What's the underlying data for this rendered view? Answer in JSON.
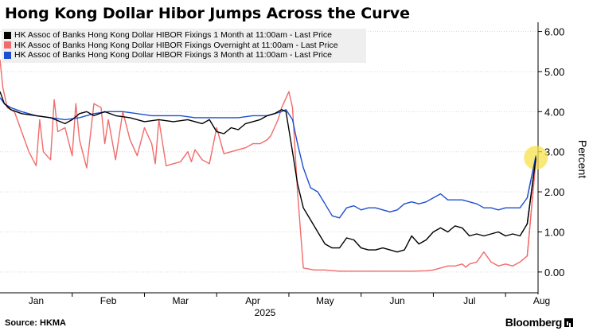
{
  "title": "Hong Kong Dollar Hibor Jumps Across the Curve",
  "source": "Source: HKMA",
  "brand": "Bloomberg",
  "colors": {
    "one_month": "#000000",
    "overnight": "#f26b6b",
    "three_month": "#1f4fd1",
    "highlight": "#f7e24a",
    "grid": "#d9d9d9",
    "legend_bg": "#efefef"
  },
  "chart_data": {
    "type": "line",
    "title": "Hong Kong Dollar Hibor Jumps Across the Curve",
    "xlabel": "2025",
    "ylabel": "Percent",
    "y_axis_side": "right",
    "ylim": [
      -0.4,
      6.15
    ],
    "yticks": [
      0.0,
      1.0,
      2.0,
      3.0,
      4.0,
      5.0,
      6.0
    ],
    "ytick_labels": [
      "0.00",
      "1.00",
      "2.00",
      "3.00",
      "4.00",
      "5.00",
      "6.00"
    ],
    "xlim": [
      0,
      7.45
    ],
    "xticks": [
      0.5,
      1.5,
      2.5,
      3.5,
      4.5,
      5.5,
      6.5,
      7.5
    ],
    "xtick_labels": [
      "Jan",
      "Feb",
      "Mar",
      "Apr",
      "May",
      "Jun",
      "Jul",
      "Aug"
    ],
    "x_unit": "months since start of 2025 (0 = Jan 1)",
    "year_label": "2025",
    "grid": true,
    "legend_position": "top-left",
    "highlight_marker": {
      "x": 7.42,
      "y": 2.85
    },
    "series": [
      {
        "name": "HK Assoc of Banks Hong Kong Dollar HIBOR Fixings 1 Month at 11:00am - Last Price",
        "color_key": "one_month",
        "x": [
          0,
          0.06,
          0.15,
          0.3,
          0.5,
          0.7,
          0.9,
          1.0,
          1.1,
          1.2,
          1.3,
          1.45,
          1.6,
          1.8,
          2.0,
          2.2,
          2.4,
          2.6,
          2.7,
          2.8,
          2.9,
          3.0,
          3.1,
          3.2,
          3.3,
          3.4,
          3.5,
          3.6,
          3.7,
          3.8,
          3.85,
          3.9,
          3.96,
          4.05,
          4.12,
          4.2,
          4.3,
          4.4,
          4.5,
          4.6,
          4.7,
          4.8,
          4.9,
          5.0,
          5.1,
          5.2,
          5.3,
          5.4,
          5.5,
          5.6,
          5.7,
          5.8,
          5.9,
          6.0,
          6.1,
          6.2,
          6.3,
          6.4,
          6.5,
          6.6,
          6.7,
          6.8,
          6.9,
          7.0,
          7.1,
          7.2,
          7.3,
          7.42
        ],
        "y": [
          4.5,
          4.2,
          4.05,
          3.95,
          3.9,
          3.85,
          3.7,
          3.8,
          3.95,
          4.0,
          3.9,
          4.0,
          3.9,
          3.85,
          3.75,
          3.8,
          3.75,
          3.8,
          3.75,
          3.7,
          3.8,
          3.5,
          3.45,
          3.6,
          3.55,
          3.7,
          3.75,
          3.8,
          3.9,
          3.95,
          4.0,
          4.05,
          4.0,
          3.0,
          2.2,
          1.6,
          1.3,
          1.0,
          0.7,
          0.6,
          0.6,
          0.85,
          0.8,
          0.6,
          0.55,
          0.55,
          0.6,
          0.55,
          0.5,
          0.55,
          0.9,
          0.7,
          0.8,
          1.0,
          1.1,
          1.0,
          1.15,
          1.1,
          0.9,
          0.95,
          0.9,
          0.95,
          1.0,
          0.9,
          0.95,
          0.9,
          1.2,
          2.85
        ]
      },
      {
        "name": "HK Assoc of Banks Hong Kong Dollar HIBOR Fixings Overnight at 11:00am - Last Price",
        "color_key": "overnight",
        "x": [
          0,
          0.04,
          0.1,
          0.2,
          0.3,
          0.4,
          0.5,
          0.55,
          0.6,
          0.7,
          0.75,
          0.8,
          0.9,
          1.0,
          1.05,
          1.1,
          1.2,
          1.3,
          1.4,
          1.45,
          1.5,
          1.6,
          1.7,
          1.8,
          1.9,
          2.0,
          2.1,
          2.15,
          2.2,
          2.3,
          2.4,
          2.5,
          2.6,
          2.65,
          2.7,
          2.8,
          2.9,
          3.0,
          3.1,
          3.2,
          3.3,
          3.4,
          3.5,
          3.6,
          3.7,
          3.75,
          3.8,
          3.85,
          3.9,
          3.95,
          4.0,
          4.05,
          4.12,
          4.2,
          4.35,
          4.5,
          4.7,
          4.9,
          5.1,
          5.3,
          5.5,
          5.7,
          5.9,
          6.0,
          6.1,
          6.2,
          6.3,
          6.4,
          6.45,
          6.5,
          6.6,
          6.7,
          6.8,
          6.9,
          7.0,
          7.1,
          7.2,
          7.3,
          7.42
        ],
        "y": [
          5.3,
          4.6,
          4.1,
          4.0,
          3.5,
          3.0,
          2.65,
          3.8,
          3.0,
          2.8,
          4.3,
          3.5,
          3.6,
          2.9,
          4.2,
          3.3,
          2.6,
          4.2,
          4.1,
          3.2,
          3.8,
          2.8,
          4.0,
          3.3,
          2.9,
          3.6,
          3.2,
          2.7,
          3.8,
          2.65,
          2.7,
          2.75,
          3.0,
          2.75,
          3.05,
          2.8,
          2.7,
          3.6,
          2.95,
          3.0,
          3.05,
          3.1,
          3.2,
          3.2,
          3.3,
          3.4,
          3.6,
          3.8,
          4.1,
          4.3,
          4.5,
          4.1,
          2.0,
          0.1,
          0.05,
          0.05,
          0.02,
          0.02,
          0.02,
          0.02,
          0.02,
          0.02,
          0.03,
          0.05,
          0.1,
          0.15,
          0.15,
          0.2,
          0.12,
          0.2,
          0.25,
          0.5,
          0.25,
          0.15,
          0.2,
          0.15,
          0.25,
          0.4,
          2.8
        ]
      },
      {
        "name": "HK Assoc of Banks Hong Kong Dollar HIBOR Fixings 3 Month at 11:00am - Last Price",
        "color_key": "three_month",
        "x": [
          0,
          0.06,
          0.15,
          0.3,
          0.5,
          0.7,
          0.9,
          1.1,
          1.3,
          1.5,
          1.7,
          1.9,
          2.1,
          2.3,
          2.5,
          2.7,
          2.9,
          3.1,
          3.3,
          3.5,
          3.7,
          3.9,
          3.96,
          4.05,
          4.12,
          4.2,
          4.3,
          4.4,
          4.5,
          4.6,
          4.7,
          4.8,
          4.9,
          5.0,
          5.1,
          5.2,
          5.3,
          5.4,
          5.5,
          5.6,
          5.7,
          5.8,
          5.9,
          6.0,
          6.1,
          6.2,
          6.3,
          6.4,
          6.5,
          6.6,
          6.7,
          6.8,
          6.9,
          7.0,
          7.1,
          7.2,
          7.3,
          7.42
        ],
        "y": [
          4.35,
          4.2,
          4.1,
          4.0,
          3.9,
          3.85,
          3.8,
          3.85,
          3.95,
          4.0,
          4.0,
          3.95,
          3.9,
          3.9,
          3.9,
          3.85,
          3.85,
          3.85,
          3.85,
          3.9,
          3.9,
          4.0,
          4.05,
          3.8,
          3.2,
          2.6,
          2.1,
          2.0,
          1.7,
          1.4,
          1.35,
          1.6,
          1.65,
          1.55,
          1.6,
          1.6,
          1.55,
          1.5,
          1.55,
          1.7,
          1.75,
          1.7,
          1.75,
          1.85,
          1.95,
          1.8,
          1.8,
          1.8,
          1.75,
          1.7,
          1.6,
          1.6,
          1.55,
          1.6,
          1.6,
          1.6,
          1.85,
          2.9
        ]
      }
    ]
  }
}
